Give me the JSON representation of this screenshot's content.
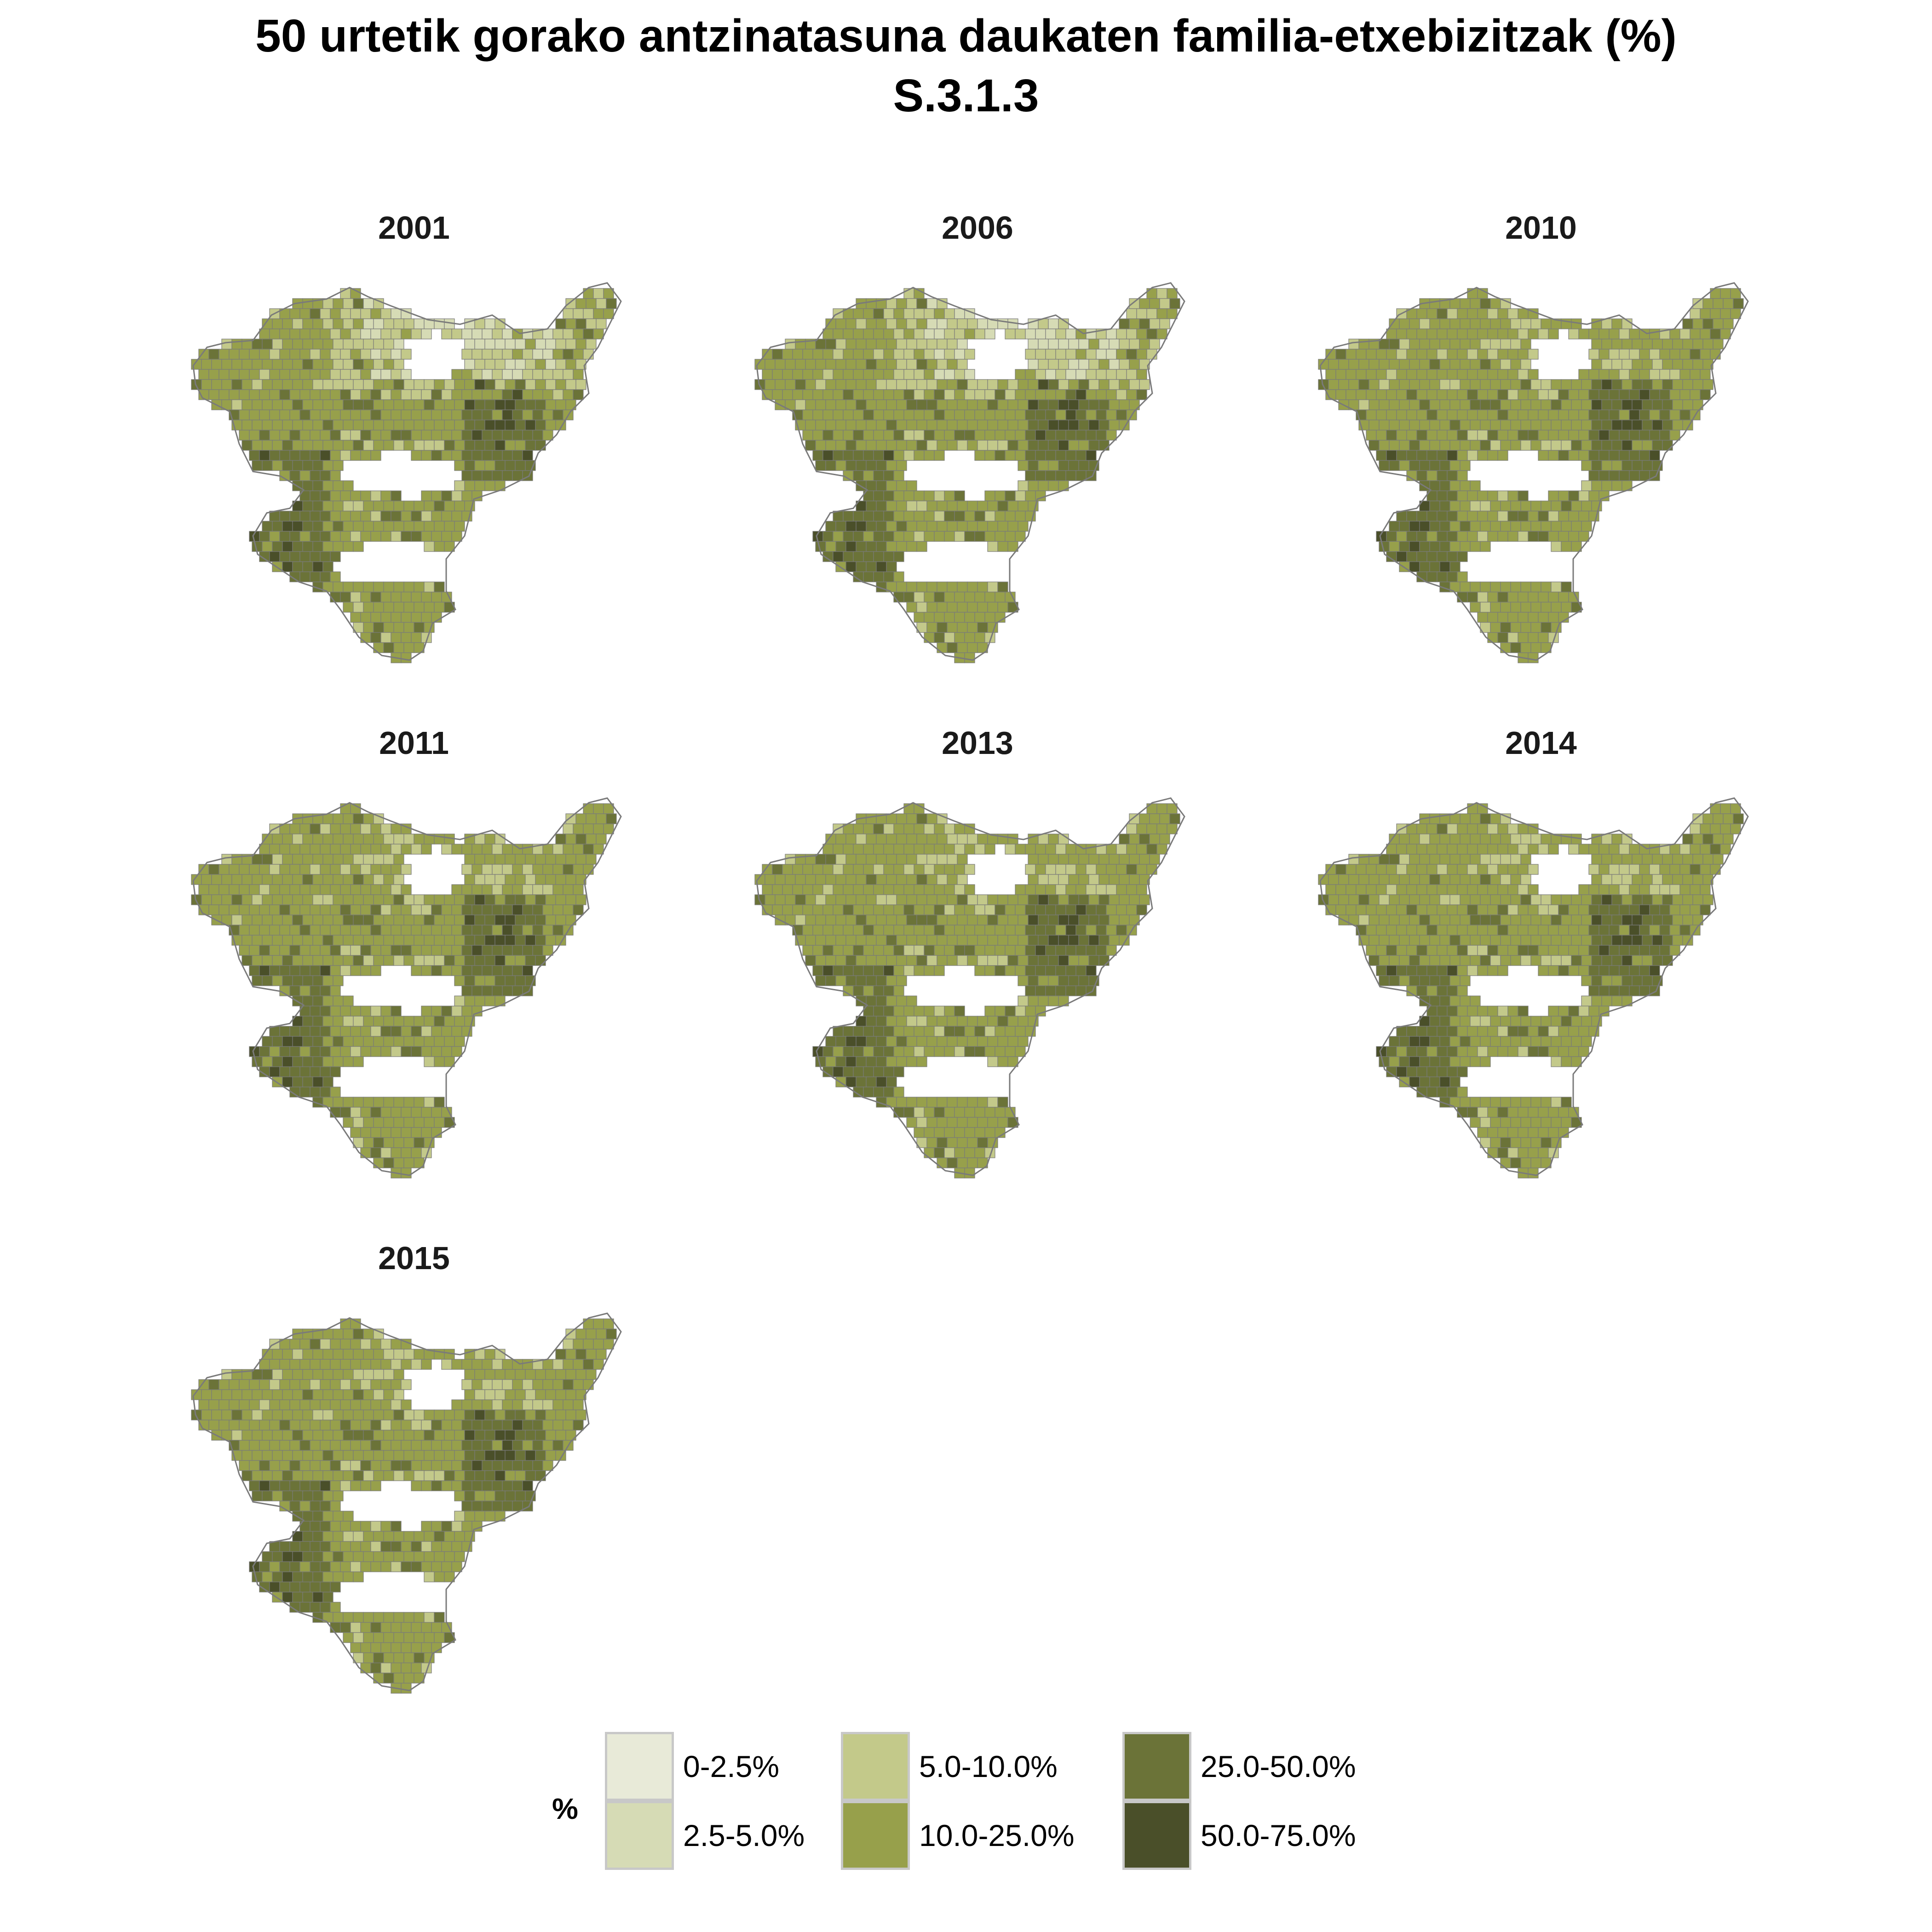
{
  "title": {
    "line1": "50 urtetik gorako antzinatasuna daukaten familia-etxebizitzak (%)",
    "line2": "S.3.1.3"
  },
  "legend": {
    "title": "%",
    "classes": [
      {
        "label": "0-2.5%",
        "color": "#e8ead8"
      },
      {
        "label": "2.5-5.0%",
        "color": "#d6dbb5"
      },
      {
        "label": "5.0-10.0%",
        "color": "#c3c98a"
      },
      {
        "label": "10.0-25.0%",
        "color": "#97a04b"
      },
      {
        "label": "25.0-50.0%",
        "color": "#6b7338"
      },
      {
        "label": "50.0-75.0%",
        "color": "#4a4f29"
      }
    ]
  },
  "panels": [
    {
      "year": "2001"
    },
    {
      "year": "2006"
    },
    {
      "year": "2010"
    },
    {
      "year": "2011"
    },
    {
      "year": "2013"
    },
    {
      "year": "2014"
    },
    {
      "year": "2015"
    }
  ],
  "colors": {
    "border": "#7a7a7a"
  }
}
